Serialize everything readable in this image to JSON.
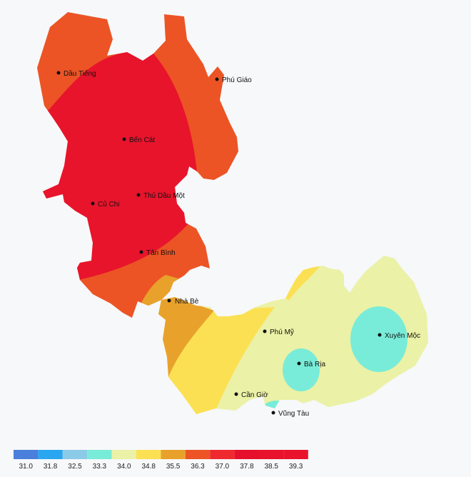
{
  "map": {
    "cities": [
      {
        "id": "dau-tieng",
        "name": "Dầu Tiếng"
      },
      {
        "id": "phu-giao",
        "name": "Phú Giáo"
      },
      {
        "id": "ben-cat",
        "name": "Bến Cát"
      },
      {
        "id": "thu-dau-mot",
        "name": "Thủ Dầu Một"
      },
      {
        "id": "cu-chi",
        "name": "Củ Chi"
      },
      {
        "id": "tan-binh",
        "name": "Tân Bình"
      },
      {
        "id": "nha-be",
        "name": "Nhà Bè"
      },
      {
        "id": "phu-my",
        "name": "Phú Mỹ"
      },
      {
        "id": "xuyen-moc",
        "name": "Xuyên Mộc"
      },
      {
        "id": "ba-ria",
        "name": "Bà Rịa"
      },
      {
        "id": "can-gio",
        "name": "Cần Giờ"
      },
      {
        "id": "vung-tau",
        "name": "Vũng Tàu"
      }
    ],
    "legend": {
      "labels": [
        "31.0",
        "31.8",
        "32.5",
        "33.3",
        "34.0",
        "34.8",
        "35.5",
        "36.3",
        "37.0",
        "37.8",
        "38.5",
        "39.3"
      ],
      "colors": [
        "#4a7fdc",
        "#2aa6f0",
        "#8ccbe8",
        "#78ecd8",
        "#ebf1a6",
        "#fce053",
        "#e8a22b",
        "#ec5425",
        "#ee2a2f",
        "#e6102c",
        "#e8122c",
        "#ea132d"
      ]
    },
    "zone_colors": {
      "c363": "#ec5425",
      "c378": "#e8142c",
      "c355": "#e8a22b",
      "c348": "#fce053",
      "c340": "#ebf1a6",
      "c333": "#78ecd8"
    }
  }
}
